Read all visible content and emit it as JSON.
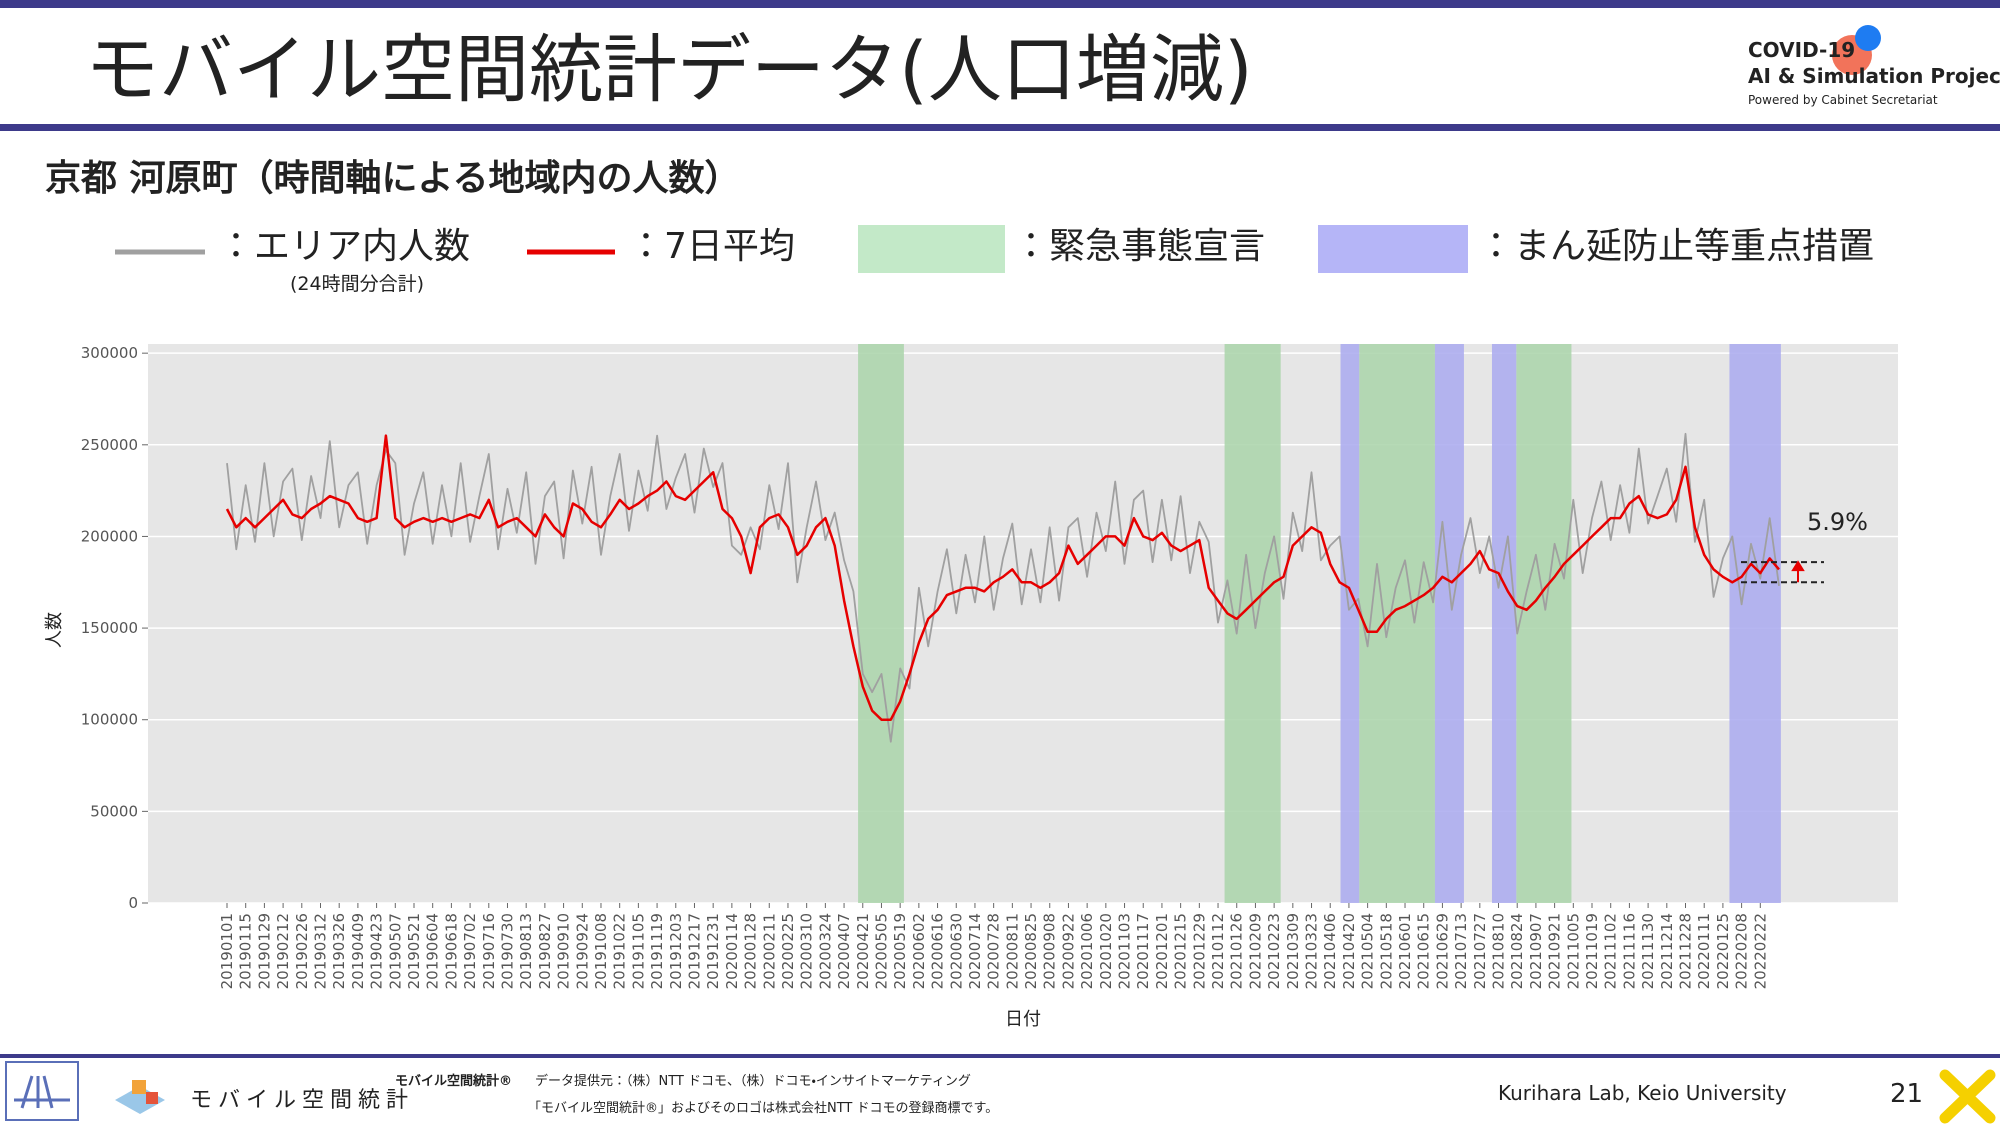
{
  "header": {
    "title": "モバイル空間統計データ(人口増減)",
    "logo": [
      "COVID-19",
      "AI & Simulation Project",
      "Powered by Cabinet Secretariat"
    ]
  },
  "chart_data": {
    "type": "line",
    "title": "京都 河原町（時間軸による地域内の人数）",
    "x_label": "日付",
    "y_label": "人数",
    "categories": [
      "20190101",
      null,
      "20190115",
      null,
      "20190129",
      null,
      "20190212",
      null,
      "20190226",
      null,
      "20190312",
      null,
      "20190326",
      null,
      "20190409",
      null,
      "20190423",
      null,
      "20190507",
      null,
      "20190521",
      null,
      "20190604",
      null,
      "20190618",
      null,
      "20190702",
      null,
      "20190716",
      null,
      "20190730",
      null,
      "20190813",
      null,
      "20190827",
      null,
      "20190910",
      null,
      "20190924",
      null,
      "20191008",
      null,
      "20191022",
      null,
      "20191105",
      null,
      "20191119",
      null,
      "20191203",
      null,
      "20191217",
      null,
      "20191231",
      null,
      "20200114",
      null,
      "20200128",
      null,
      "20200211",
      null,
      "20200225",
      null,
      "20200310",
      null,
      "20200324",
      null,
      "20200407",
      null,
      "20200421",
      null,
      "20200505",
      null,
      "20200519",
      null,
      "20200602",
      null,
      "20200616",
      null,
      "20200630",
      null,
      "20200714",
      null,
      "20200728",
      null,
      "20200811",
      null,
      "20200825",
      null,
      "20200908",
      null,
      "20200922",
      null,
      "20201006",
      null,
      "20201020",
      null,
      "20201103",
      null,
      "20201117",
      null,
      "20201201",
      null,
      "20201215",
      null,
      "20201229",
      null,
      "20210112",
      null,
      "20210126",
      null,
      "20210209",
      null,
      "20210223",
      null,
      "20210309",
      null,
      "20210323",
      null,
      "20210406",
      null,
      "20210420",
      null,
      "20210504",
      null,
      "20210518",
      null,
      "20210601",
      null,
      "20210615",
      null,
      "20210629",
      null,
      "20210713",
      null,
      "20210727",
      null,
      "20210810",
      null,
      "20210824",
      null,
      "20210907",
      null,
      "20210921",
      null,
      "20211005",
      null,
      "20211019",
      null,
      "20211102",
      null,
      "20211116",
      null,
      "20211130",
      null,
      "20211214",
      null,
      "20211228",
      null,
      "20220111",
      null,
      "20220125",
      null,
      "20220208",
      null,
      "20220222",
      null,
      null
    ],
    "series": [
      {
        "name": "：エリア内人数",
        "sublabel": "(24時間分合計)",
        "color": "#a0a0a0",
        "values": [
          240000,
          193000,
          228000,
          197000,
          240000,
          200000,
          230000,
          237000,
          198000,
          233000,
          210000,
          252000,
          205000,
          228000,
          235000,
          196000,
          228000,
          247000,
          240000,
          190000,
          218000,
          235000,
          196000,
          228000,
          200000,
          240000,
          197000,
          222000,
          245000,
          193000,
          226000,
          202000,
          235000,
          185000,
          222000,
          230000,
          188000,
          236000,
          207000,
          238000,
          190000,
          222000,
          245000,
          203000,
          236000,
          214000,
          255000,
          215000,
          232000,
          245000,
          213000,
          248000,
          227000,
          240000,
          195000,
          190000,
          205000,
          193000,
          228000,
          204000,
          240000,
          175000,
          205000,
          230000,
          198000,
          213000,
          187000,
          170000,
          125000,
          115000,
          125000,
          88000,
          128000,
          117000,
          172000,
          140000,
          170000,
          193000,
          158000,
          190000,
          164000,
          200000,
          160000,
          188000,
          207000,
          163000,
          193000,
          164000,
          205000,
          165000,
          205000,
          210000,
          178000,
          213000,
          192000,
          230000,
          185000,
          220000,
          225000,
          186000,
          220000,
          187000,
          222000,
          180000,
          208000,
          197000,
          153000,
          176000,
          147000,
          190000,
          150000,
          180000,
          200000,
          166000,
          213000,
          192000,
          235000,
          187000,
          195000,
          200000,
          160000,
          166000,
          140000,
          185000,
          145000,
          172000,
          187000,
          153000,
          186000,
          164000,
          208000,
          160000,
          190000,
          210000,
          180000,
          200000,
          172000,
          200000,
          147000,
          170000,
          190000,
          160000,
          196000,
          177000,
          220000,
          180000,
          210000,
          230000,
          198000,
          228000,
          202000,
          248000,
          207000,
          222000,
          237000,
          208000,
          256000,
          197000,
          220000,
          167000,
          188000,
          200000,
          163000,
          196000,
          177000,
          210000,
          173000
        ]
      },
      {
        "name": "：7日平均",
        "color": "#e60000",
        "values": [
          215000,
          205000,
          210000,
          205000,
          210000,
          215000,
          220000,
          212000,
          210000,
          215000,
          218000,
          222000,
          220000,
          218000,
          210000,
          208000,
          210000,
          255000,
          210000,
          205000,
          208000,
          210000,
          208000,
          210000,
          208000,
          210000,
          212000,
          210000,
          220000,
          205000,
          208000,
          210000,
          205000,
          200000,
          212000,
          205000,
          200000,
          218000,
          215000,
          208000,
          205000,
          212000,
          220000,
          215000,
          218000,
          222000,
          225000,
          230000,
          222000,
          220000,
          225000,
          230000,
          235000,
          215000,
          210000,
          200000,
          180000,
          205000,
          210000,
          212000,
          205000,
          190000,
          195000,
          205000,
          210000,
          195000,
          165000,
          140000,
          118000,
          105000,
          100000,
          100000,
          110000,
          125000,
          142000,
          155000,
          160000,
          168000,
          170000,
          172000,
          172000,
          170000,
          175000,
          178000,
          182000,
          175000,
          175000,
          172000,
          175000,
          180000,
          195000,
          185000,
          190000,
          195000,
          200000,
          200000,
          195000,
          210000,
          200000,
          198000,
          202000,
          195000,
          192000,
          195000,
          198000,
          172000,
          165000,
          158000,
          155000,
          160000,
          165000,
          170000,
          175000,
          178000,
          195000,
          200000,
          205000,
          202000,
          185000,
          175000,
          172000,
          160000,
          148000,
          148000,
          155000,
          160000,
          162000,
          165000,
          168000,
          172000,
          178000,
          175000,
          180000,
          185000,
          192000,
          182000,
          180000,
          170000,
          162000,
          160000,
          165000,
          172000,
          178000,
          185000,
          190000,
          195000,
          200000,
          205000,
          210000,
          210000,
          218000,
          222000,
          212000,
          210000,
          212000,
          220000,
          238000,
          205000,
          190000,
          182000,
          178000,
          175000,
          178000,
          185000,
          180000,
          188000,
          182000
        ]
      }
    ],
    "emergency_label": "：緊急事態宣言",
    "emergency_color": "#a9d4a9",
    "emergency_legend_color": "#c3e9c8",
    "emergency_periods": [
      [
        67.5,
        72.4
      ],
      [
        106.7,
        112.7
      ],
      [
        121.1,
        129.2
      ],
      [
        137.9,
        143.8
      ]
    ],
    "priority_label": "：まん延防止等重点措置",
    "priority_color": "#a9a9ee",
    "priority_legend_color": "#b5b5f7",
    "priority_periods": [
      [
        119.1,
        121.1
      ],
      [
        129.2,
        132.3
      ],
      [
        135.3,
        137.9
      ],
      [
        160.7,
        166.2
      ]
    ],
    "annotation": "5.9%",
    "annotation_levels": [
      175000,
      186000
    ],
    "ylim": [
      0,
      305000
    ],
    "yticks": [
      0,
      50000,
      100000,
      150000,
      200000,
      250000,
      300000
    ],
    "grid": true,
    "background": "#e6e6e6"
  },
  "footer": {
    "brand": "モバイル空間統計",
    "brand_mark": "モバイル空間統計®",
    "source": "データ提供元：（株）NTT ドコモ、（株）ドコモ・インサイトマーケティング",
    "trademark": "「モバイル空間統計®」およびそのロゴは株式会社NTT ドコモの登録商標です。",
    "lab": "Kurihara Lab, Keio University",
    "page": "21"
  }
}
